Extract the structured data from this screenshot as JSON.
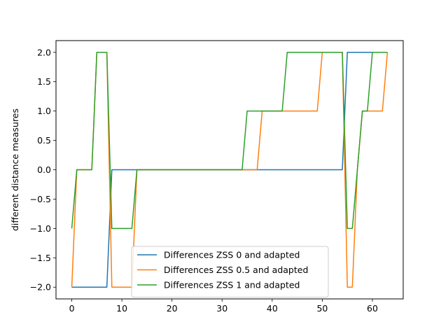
{
  "chart_data": {
    "type": "line",
    "title": "",
    "xlabel": "",
    "ylabel": "different distance measures",
    "xlim": [
      -3.15,
      66.15
    ],
    "ylim": [
      -2.2,
      2.2
    ],
    "xticks": [
      0,
      10,
      20,
      30,
      40,
      50,
      60
    ],
    "yticks": [
      -2.0,
      -1.5,
      -1.0,
      -0.5,
      0.0,
      0.5,
      1.0,
      1.5,
      2.0
    ],
    "xtick_labels": [
      "0",
      "10",
      "20",
      "30",
      "40",
      "50",
      "60"
    ],
    "ytick_labels": [
      "−2.0",
      "−1.5",
      "−1.0",
      "−0.5",
      "0.0",
      "0.5",
      "1.0",
      "1.5",
      "2.0"
    ],
    "grid": false,
    "legend_position": "lower-center",
    "series": [
      {
        "name": "Differences ZSS 0 and adapted",
        "color": "#1f77b4",
        "points": [
          [
            0,
            -2
          ],
          [
            7,
            -2
          ],
          [
            8,
            0
          ],
          [
            54,
            0
          ],
          [
            55,
            2
          ],
          [
            63,
            2
          ]
        ]
      },
      {
        "name": "Differences ZSS 0.5 and adapted",
        "color": "#ff7f0e",
        "points": [
          [
            0,
            -2
          ],
          [
            1,
            0
          ],
          [
            4,
            0
          ],
          [
            5,
            2
          ],
          [
            7,
            2
          ],
          [
            8,
            -2
          ],
          [
            12,
            -2
          ],
          [
            13,
            0
          ],
          [
            37,
            0
          ],
          [
            38,
            1
          ],
          [
            49,
            1
          ],
          [
            50,
            2
          ],
          [
            54,
            2
          ],
          [
            55,
            -2
          ],
          [
            56,
            -2
          ],
          [
            57,
            0
          ],
          [
            58,
            1
          ],
          [
            62,
            1
          ],
          [
            63,
            2
          ]
        ]
      },
      {
        "name": "Differences ZSS 1 and adapted",
        "color": "#2ca02c",
        "points": [
          [
            0,
            -1
          ],
          [
            1,
            0
          ],
          [
            4,
            0
          ],
          [
            5,
            2
          ],
          [
            7,
            2
          ],
          [
            8,
            -1
          ],
          [
            12,
            -1
          ],
          [
            13,
            0
          ],
          [
            34,
            0
          ],
          [
            35,
            1
          ],
          [
            42,
            1
          ],
          [
            43,
            2
          ],
          [
            54,
            2
          ],
          [
            55,
            -1
          ],
          [
            56,
            -1
          ],
          [
            58,
            1
          ],
          [
            59,
            1
          ],
          [
            60,
            2
          ],
          [
            63,
            2
          ]
        ]
      }
    ]
  }
}
